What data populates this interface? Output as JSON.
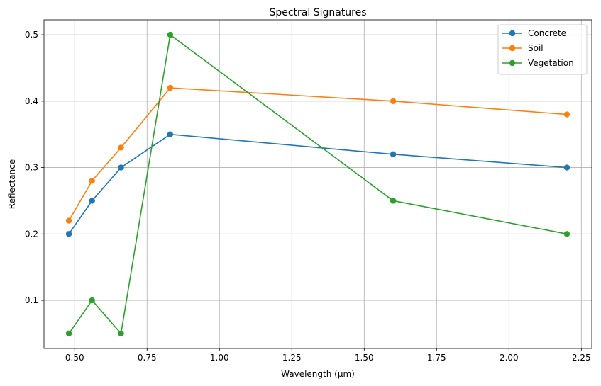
{
  "chart_data": {
    "type": "line",
    "title": "Spectral Signatures",
    "xlabel": "Wavelength (µm)",
    "ylabel": "Reflectance",
    "x": [
      0.48,
      0.56,
      0.66,
      0.83,
      1.6,
      2.2
    ],
    "xlim": [
      0.394,
      2.286
    ],
    "ylim": [
      0.0275,
      0.5225
    ],
    "xticks": [
      0.5,
      0.75,
      1.0,
      1.25,
      1.5,
      1.75,
      2.0,
      2.25
    ],
    "xtick_labels": [
      "0.50",
      "0.75",
      "1.00",
      "1.25",
      "1.50",
      "1.75",
      "2.00",
      "2.25"
    ],
    "yticks": [
      0.1,
      0.2,
      0.3,
      0.4,
      0.5
    ],
    "ytick_labels": [
      "0.1",
      "0.2",
      "0.3",
      "0.4",
      "0.5"
    ],
    "grid": true,
    "legend_position": "top-right",
    "series": [
      {
        "name": "Concrete",
        "color": "#1f77b4",
        "values": [
          0.2,
          0.25,
          0.3,
          0.35,
          0.32,
          0.3
        ]
      },
      {
        "name": "Soil",
        "color": "#ff7f0e",
        "values": [
          0.22,
          0.28,
          0.33,
          0.42,
          0.4,
          0.38
        ]
      },
      {
        "name": "Vegetation",
        "color": "#2ca02c",
        "values": [
          0.05,
          0.1,
          0.05,
          0.5,
          0.25,
          0.2
        ]
      }
    ]
  }
}
